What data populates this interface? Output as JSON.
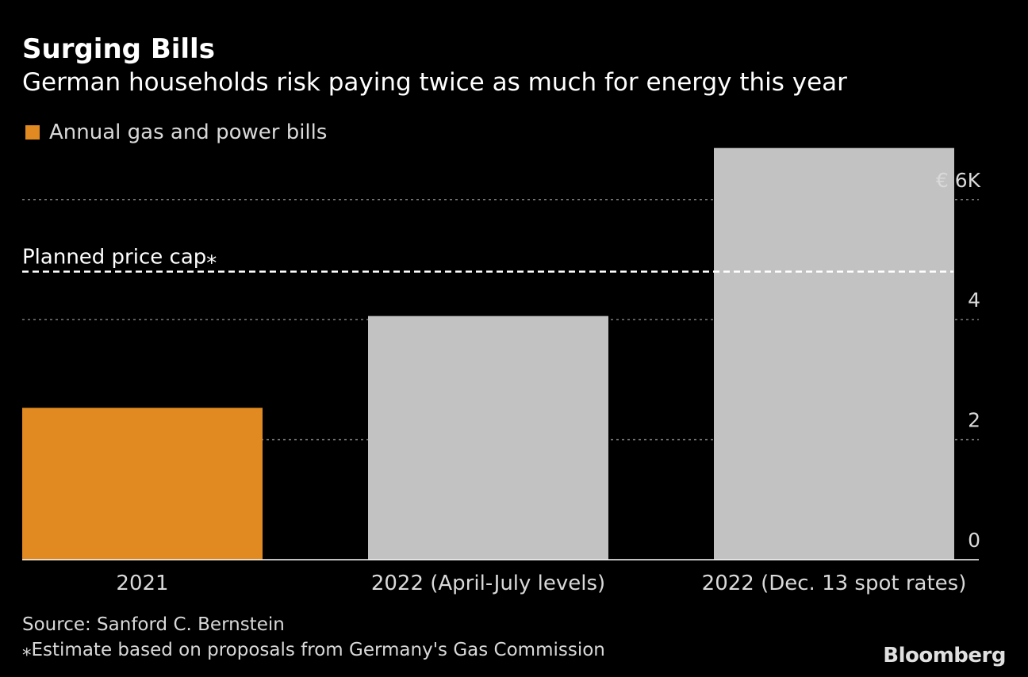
{
  "title": "Surging Bills",
  "subtitle": "German households risk paying twice as much for energy this year",
  "legend": {
    "label": "Annual gas and power bills",
    "color": "#e08a21"
  },
  "source": "Source: Sanford C. Bernstein",
  "footnote": "⁎Estimate based on proposals from Germany's Gas Commission",
  "brand": "Bloomberg",
  "chart_data": {
    "type": "bar",
    "title": "Surging Bills",
    "subtitle": "German households risk paying twice as much for energy this year",
    "categories": [
      "2021",
      "2022 (April-July levels)",
      "2022 (Dec. 13 spot rates)"
    ],
    "series": [
      {
        "name": "Annual gas and power bills",
        "values": [
          2.53,
          4.06,
          6.86
        ]
      }
    ],
    "bar_colors": [
      "#e08a21",
      "#c2c2c2",
      "#c2c2c2"
    ],
    "unit": "€ thousands",
    "ylim": [
      0,
      7
    ],
    "yticks": [
      0,
      2,
      4,
      6
    ],
    "ytick_labels": [
      "0",
      "2",
      "4",
      "€ 6K"
    ],
    "reference_line": {
      "label": "Planned price cap⁎",
      "value": 4.8
    },
    "grid": true
  }
}
